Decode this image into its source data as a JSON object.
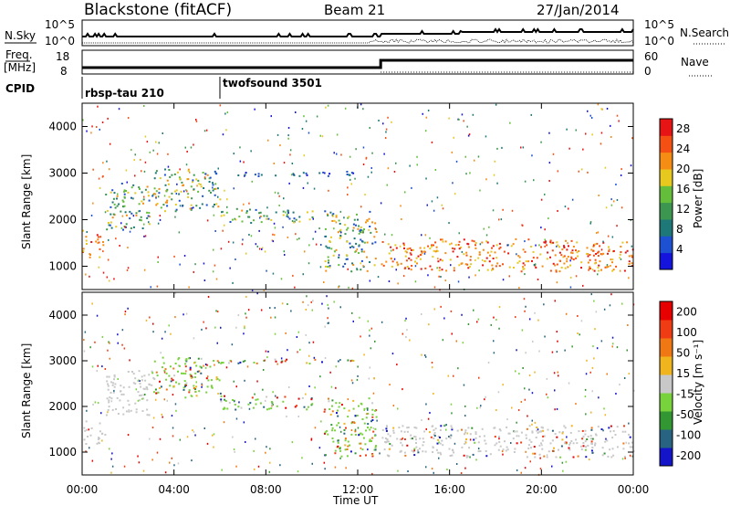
{
  "header": {
    "station": "Blackstone (fitACF)",
    "beam": "Beam 21",
    "date": "27/Jan/2014"
  },
  "colors": {
    "power_scale": [
      "#1414dc",
      "#1e50d2",
      "#1e7878",
      "#3c9650",
      "#64be3c",
      "#e6c81e",
      "#f58c14",
      "#f55014",
      "#e61414"
    ],
    "velocity_scale": [
      "#1414c8",
      "#286482",
      "#329632",
      "#78d23c",
      "#c8c8c8",
      "#f0b41e",
      "#f07814",
      "#f03c14",
      "#e60000"
    ]
  },
  "chart_data": [
    {
      "panel": "noise",
      "type": "line",
      "left_axis": {
        "label": "N.Sky",
        "ticks": [
          "10^5",
          "10^0"
        ]
      },
      "right_axis": {
        "label": "N.Search",
        "ticks": [
          "10^5",
          "10^0"
        ]
      }
    },
    {
      "panel": "frequency",
      "type": "line",
      "left_axis": {
        "label_top": "Freq.",
        "label_unit": "[MHz]",
        "ticks": [
          18,
          8
        ]
      },
      "right_axis": {
        "label": "Nave",
        "ticks": [
          60,
          0
        ]
      }
    },
    {
      "panel": "cpid",
      "label": "CPID",
      "segments": [
        {
          "name": "rbsp-tau 210",
          "start_hour": 0,
          "end_hour": 6.0
        },
        {
          "name": "twofsound 3501",
          "start_hour": 6.0,
          "end_hour": 24
        }
      ]
    },
    {
      "panel": "power",
      "type": "heatmap",
      "xlim": [
        0,
        24
      ],
      "ylim": [
        500,
        4500
      ],
      "y_ticks": [
        1000,
        2000,
        3000,
        4000
      ],
      "ylabel": "Slant Range [km]",
      "colorbar": {
        "label": "Power [dB]",
        "ticks": [
          4,
          8,
          12,
          16,
          20,
          24,
          28
        ],
        "range": [
          0,
          30
        ]
      },
      "bands": [
        {
          "t0": 0.0,
          "t1": 1.0,
          "r0": 1200,
          "r1": 1700,
          "level": "high"
        },
        {
          "t0": 1.0,
          "t1": 3.0,
          "r0": 1800,
          "r1": 2800,
          "level": "mid"
        },
        {
          "t0": 3.0,
          "t1": 6.0,
          "r0": 2200,
          "r1": 3100,
          "level": "mid"
        },
        {
          "t0": 6.0,
          "t1": 10.0,
          "r0": 1950,
          "r1": 2250,
          "level": "mid"
        },
        {
          "t0": 6.0,
          "t1": 12.0,
          "r0": 2950,
          "r1": 3050,
          "level": "low"
        },
        {
          "t0": 10.5,
          "t1": 12.8,
          "r0": 900,
          "r1": 2200,
          "level": "mid"
        },
        {
          "t0": 13.0,
          "t1": 24.0,
          "r0": 900,
          "r1": 1600,
          "level": "high"
        }
      ]
    },
    {
      "panel": "velocity",
      "type": "heatmap",
      "xlim": [
        0,
        24
      ],
      "ylim": [
        500,
        4500
      ],
      "y_ticks": [
        1000,
        2000,
        3000,
        4000
      ],
      "ylabel": "Slant Range [km]",
      "colorbar": {
        "label": "Velocity [m s⁻¹]",
        "ticks": [
          200,
          100,
          50,
          15,
          -15,
          -50,
          -100,
          -200
        ]
      },
      "xlabel": "Time UT",
      "x_ticks": [
        "00:00",
        "04:00",
        "08:00",
        "12:00",
        "16:00",
        "20:00",
        "00:00"
      ]
    }
  ]
}
